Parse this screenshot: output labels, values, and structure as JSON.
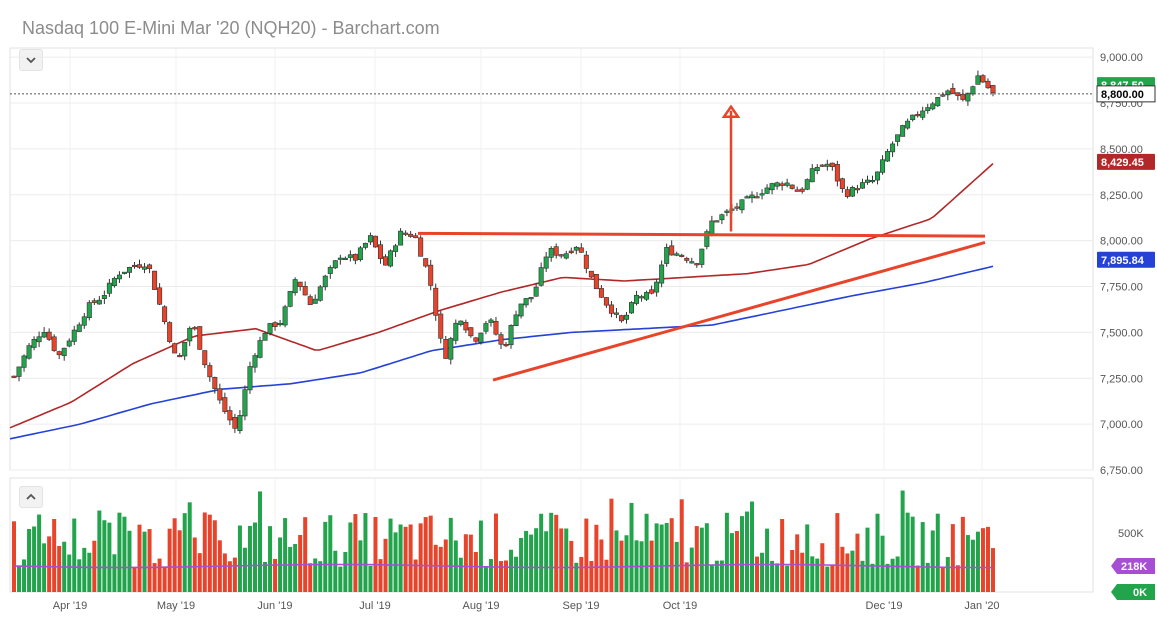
{
  "header": {
    "title": "Nasdaq 100 E-Mini Mar '20 (NQH20) - Barchart.com"
  },
  "colors": {
    "up": "#21a44b",
    "down": "#e8442b",
    "ma50": "#b22727",
    "ma200": "#2541d6",
    "annot": "#e8442b",
    "volume_avg": "#a64fd4",
    "price_line": "#555555"
  },
  "chart_data": {
    "type": "candlestick",
    "price_axis": {
      "ticks": [
        6750,
        7000,
        7250,
        7500,
        7750,
        8000,
        8250,
        8500,
        8750,
        9000
      ],
      "tick_labels": [
        "6,750.00",
        "7,000.00",
        "7,250.00",
        "7,500.00",
        "7,750.00",
        "8,000.00",
        "8,250.00",
        "8,500.00",
        "8,750.00",
        "9,000.00"
      ],
      "ylim": [
        6750,
        9050
      ]
    },
    "x_axis": {
      "labels": [
        "Apr '19",
        "May '19",
        "Jun '19",
        "Jul '19",
        "Aug '19",
        "Sep '19",
        "Oct '19",
        "Dec '19",
        "Jan '20"
      ]
    },
    "last_price": {
      "value": 8800.0,
      "label": "8,800.00"
    },
    "last_close": {
      "value": 8847.5,
      "label": "8,847.50"
    },
    "ma50": {
      "value": 8429.45,
      "label": "8,429.45"
    },
    "ma200": {
      "value": 7895.84,
      "label": "7,895.84"
    },
    "price_anchors": [
      7260,
      7420,
      7520,
      7370,
      7500,
      7640,
      7700,
      7820,
      7860,
      7880,
      7600,
      7330,
      7560,
      7300,
      7100,
      6960,
      7350,
      7520,
      7560,
      7800,
      7650,
      7800,
      7920,
      7900,
      8020,
      7860,
      8040,
      8030,
      7800,
      7350,
      7600,
      7450,
      7580,
      7400,
      7650,
      7700,
      7950,
      7920,
      7980,
      7780,
      7650,
      7550,
      7700,
      7700,
      7950,
      7920,
      7880,
      8100,
      8150,
      8200,
      8250,
      8300,
      8320,
      8260,
      8400,
      8420,
      8250,
      8300,
      8330,
      8500,
      8620,
      8700,
      8760,
      8820,
      8760,
      8900,
      8800
    ],
    "ma50_anchors": [
      6980,
      7120,
      7330,
      7480,
      7520,
      7400,
      7500,
      7620,
      7720,
      7800,
      7780,
      7800,
      7820,
      7870,
      8010,
      8120,
      8420
    ],
    "ma200_anchors": [
      6920,
      7000,
      7110,
      7190,
      7220,
      7280,
      7400,
      7460,
      7500,
      7520,
      7540,
      7620,
      7700,
      7770,
      7860
    ],
    "support_line": {
      "from": 7240,
      "to": 7990
    },
    "resistance_line": {
      "from": 8040,
      "to": 8025
    },
    "target_arrow": {
      "from": 8050,
      "to": 8730
    },
    "volume_axis": {
      "tick_label": "500K"
    },
    "volume_avg": {
      "label": "218K"
    },
    "volume_last": {
      "label": "0K"
    }
  }
}
